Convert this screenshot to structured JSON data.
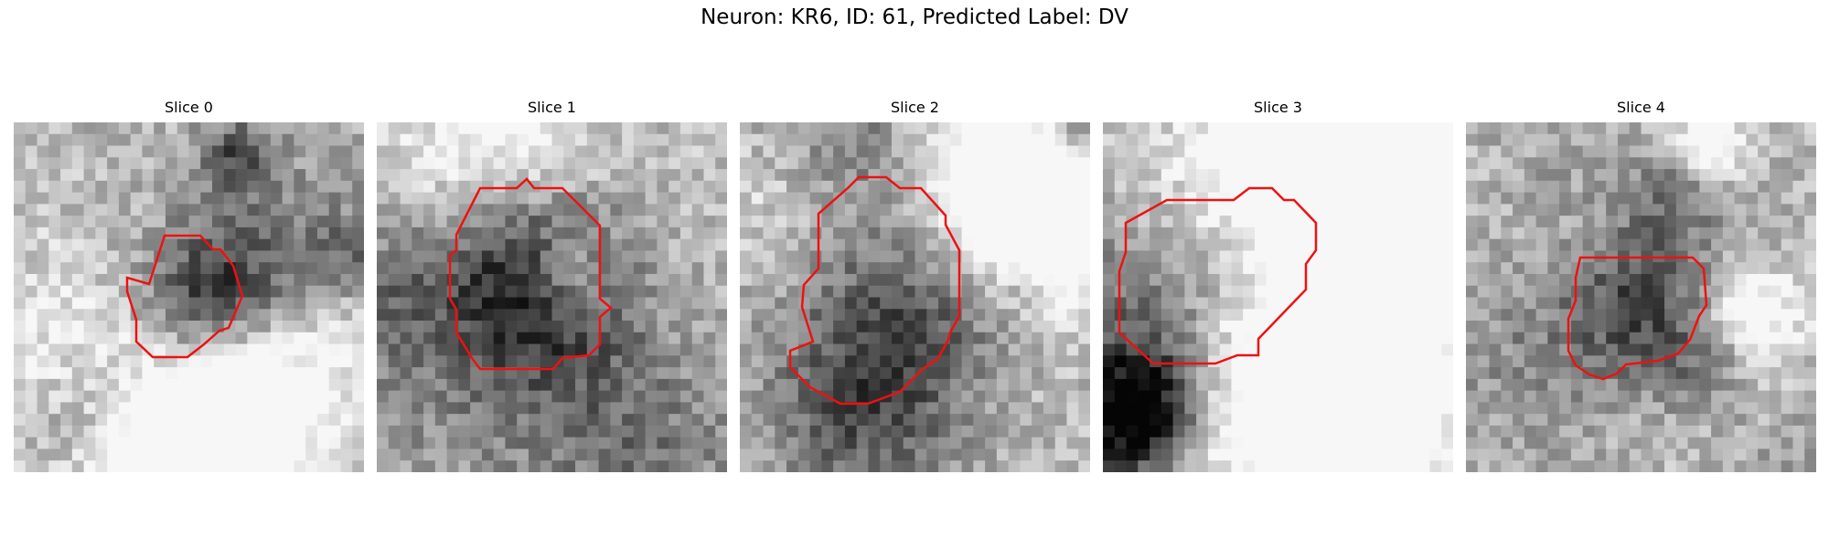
{
  "figure": {
    "title": "Neuron: KR6, ID: 61, Predicted Label: DV"
  },
  "contour_color": "#ee1111",
  "colormap": "gray",
  "grid_cells": 30,
  "panels": [
    {
      "title": "Slice 0",
      "seed": 11
    },
    {
      "title": "Slice 1",
      "seed": 23
    },
    {
      "title": "Slice 2",
      "seed": 37
    },
    {
      "title": "Slice 3",
      "seed": 41
    },
    {
      "title": "Slice 4",
      "seed": 59
    }
  ]
}
